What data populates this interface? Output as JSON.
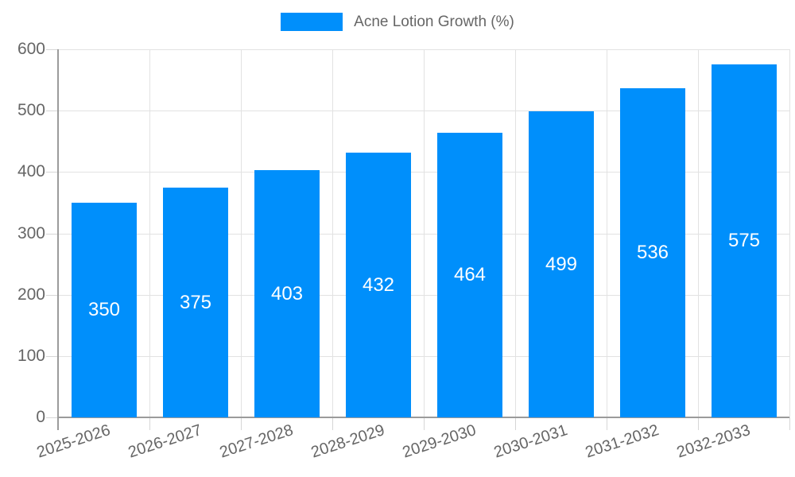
{
  "chart_data": {
    "type": "bar",
    "title": "",
    "legend": {
      "label": "Acne Lotion Growth (%)",
      "position": "top",
      "swatch_color": "#008FFB"
    },
    "categories": [
      "2025-2026",
      "2026-2027",
      "2027-2028",
      "2028-2029",
      "2029-2030",
      "2030-2031",
      "2031-2032",
      "2032-2033"
    ],
    "series": [
      {
        "name": "Acne Lotion Growth (%)",
        "values": [
          350,
          375,
          403,
          432,
          464,
          499,
          536,
          575
        ]
      }
    ],
    "xlabel": "",
    "ylabel": "",
    "ylim": [
      0,
      600
    ],
    "yticks": [
      0,
      100,
      200,
      300,
      400,
      500,
      600
    ],
    "grid": true,
    "colors": {
      "bar": "#008FFB",
      "data_label": "#ffffff",
      "axis_label": "#666666",
      "gridline": "#e2e2e2",
      "axis_line": "#9b9b9b"
    }
  }
}
